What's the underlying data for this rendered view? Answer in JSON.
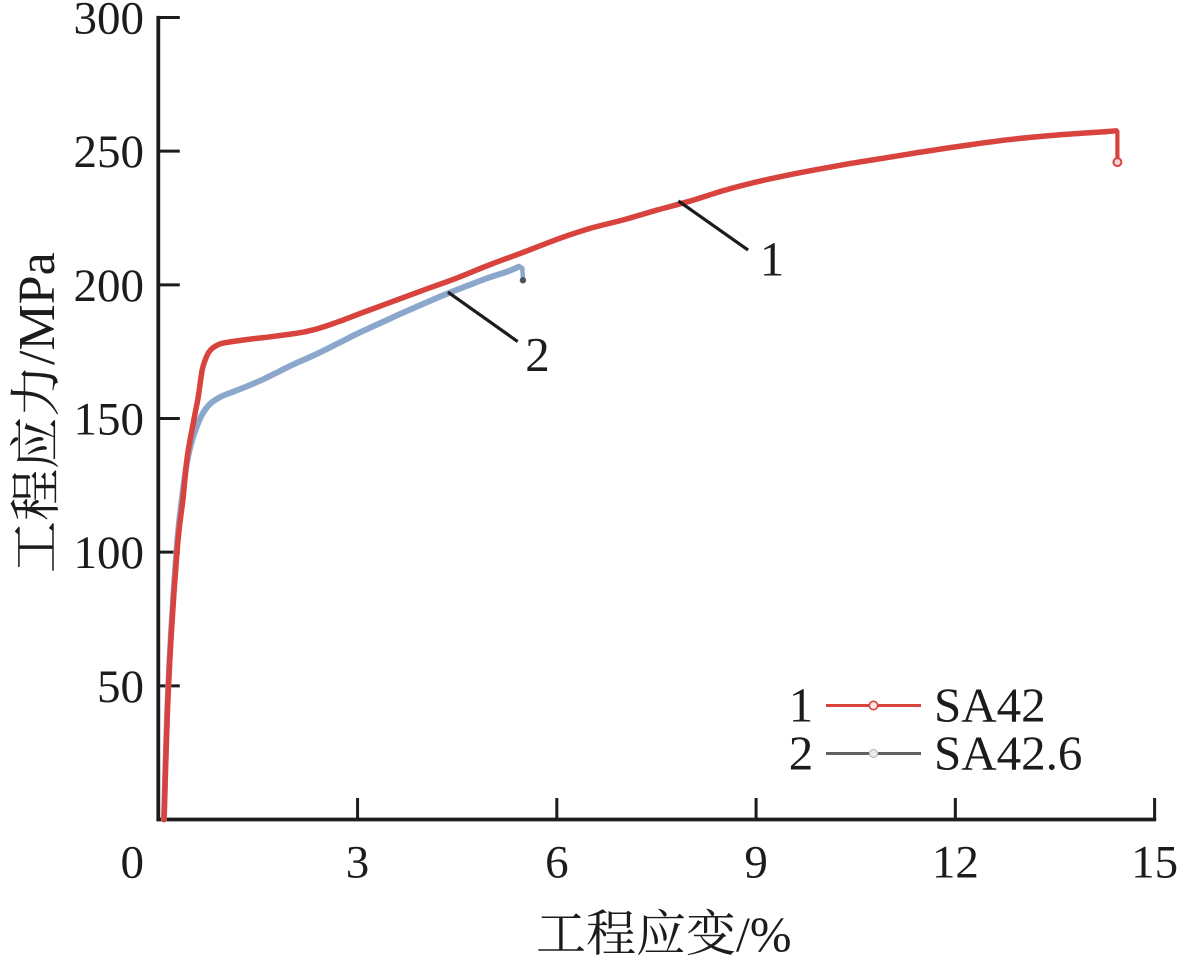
{
  "page": {
    "background": "#ffffff"
  },
  "chart_data": {
    "type": "line",
    "title": "",
    "xlabel": "工程应变/%",
    "xlabel_cjk": "工程应变",
    "xlabel_unit": "/%",
    "ylabel": "工程应力/MPa",
    "ylabel_cjk": "工程应力",
    "ylabel_unit": "/MPa",
    "xlim": [
      0,
      15
    ],
    "ylim": [
      0,
      300
    ],
    "xticks": [
      "0",
      "3",
      "6",
      "9",
      "12",
      "15"
    ],
    "yticks": [
      "50",
      "100",
      "150",
      "200",
      "250",
      "300"
    ],
    "grid": false,
    "legend_position": "lower-right",
    "axis_color": "#1c1c1c",
    "series": [
      {
        "index": "1",
        "name": "SA42",
        "color": "#d8433e",
        "legend_line_color": "#d8433e",
        "points": [
          [
            0.086,
            0
          ],
          [
            0.153,
            50
          ],
          [
            0.281,
            100
          ],
          [
            0.372,
            120
          ],
          [
            0.438,
            136
          ],
          [
            0.531,
            149
          ],
          [
            0.597,
            157.5
          ],
          [
            0.66,
            168
          ],
          [
            0.71,
            172.2
          ],
          [
            0.76,
            174.8
          ],
          [
            0.82,
            176.4
          ],
          [
            0.9,
            177.6
          ],
          [
            1.0,
            178.3
          ],
          [
            1.35,
            179.6
          ],
          [
            1.7,
            180.6
          ],
          [
            2.0,
            181.6
          ],
          [
            2.2,
            182.4
          ],
          [
            2.4,
            183.6
          ],
          [
            2.6,
            185.2
          ],
          [
            2.8,
            187.0
          ],
          [
            3.0,
            188.9
          ],
          [
            3.25,
            191.2
          ],
          [
            3.5,
            193.5
          ],
          [
            4.0,
            198.1
          ],
          [
            4.5,
            202.6
          ],
          [
            5.0,
            207.6
          ],
          [
            5.5,
            212.2
          ],
          [
            6.0,
            217.0
          ],
          [
            6.5,
            221.1
          ],
          [
            7.0,
            224.3
          ],
          [
            7.5,
            227.9
          ],
          [
            8.0,
            231.3
          ],
          [
            8.6,
            235.9
          ],
          [
            9.2,
            239.6
          ],
          [
            9.8,
            242.6
          ],
          [
            10.4,
            245.3
          ],
          [
            11.0,
            247.7
          ],
          [
            11.6,
            250.1
          ],
          [
            12.2,
            252.3
          ],
          [
            12.8,
            254.3
          ],
          [
            13.4,
            255.8
          ],
          [
            13.9,
            256.7
          ],
          [
            14.25,
            257.3
          ],
          [
            14.42,
            257.6
          ]
        ],
        "end_drop": [
          [
            14.44,
            257.4
          ],
          [
            14.44,
            246.6
          ]
        ],
        "end_marker": {
          "at": [
            14.44,
            245.9
          ],
          "type": "open-circle"
        }
      },
      {
        "index": "2",
        "name": "SA42.6",
        "color": "#8ca7cc",
        "legend_line_color": "#606060",
        "points": [
          [
            0.085,
            0
          ],
          [
            0.15,
            50
          ],
          [
            0.272,
            100
          ],
          [
            0.36,
            121
          ],
          [
            0.435,
            134
          ],
          [
            0.51,
            142
          ],
          [
            0.58,
            147
          ],
          [
            0.65,
            151
          ],
          [
            0.72,
            153.8
          ],
          [
            0.8,
            155.9
          ],
          [
            0.9,
            157.6
          ],
          [
            1.0,
            158.8
          ],
          [
            1.15,
            160.2
          ],
          [
            1.35,
            162.2
          ],
          [
            1.6,
            164.9
          ],
          [
            1.85,
            168.0
          ],
          [
            2.1,
            171.0
          ],
          [
            2.4,
            174.3
          ],
          [
            2.7,
            178.0
          ],
          [
            3.0,
            181.8
          ],
          [
            3.3,
            185.2
          ],
          [
            3.65,
            189.2
          ],
          [
            4.0,
            193.0
          ],
          [
            4.35,
            196.7
          ],
          [
            4.7,
            200.1
          ],
          [
            5.0,
            202.9
          ],
          [
            5.25,
            204.9
          ],
          [
            5.43,
            206.8
          ]
        ],
        "end_drop": [
          [
            5.48,
            206.3
          ],
          [
            5.49,
            202.4
          ]
        ],
        "end_marker": {
          "at": [
            5.49,
            201.7
          ],
          "type": "dot"
        }
      }
    ],
    "annotations": [
      {
        "label": "1",
        "label_at": [
          9.24,
          209.6
        ],
        "line_from": [
          7.83,
          231.4
        ],
        "line_to": [
          8.88,
          213.0
        ]
      },
      {
        "label": "2",
        "label_at": [
          5.71,
          173.9
        ],
        "line_from": [
          4.36,
          197.3
        ],
        "line_to": [
          5.41,
          178.8
        ]
      }
    ]
  },
  "legend": {
    "rows": [
      {
        "index": "1",
        "label": "SA42"
      },
      {
        "index": "2",
        "label": "SA42.6"
      }
    ]
  }
}
